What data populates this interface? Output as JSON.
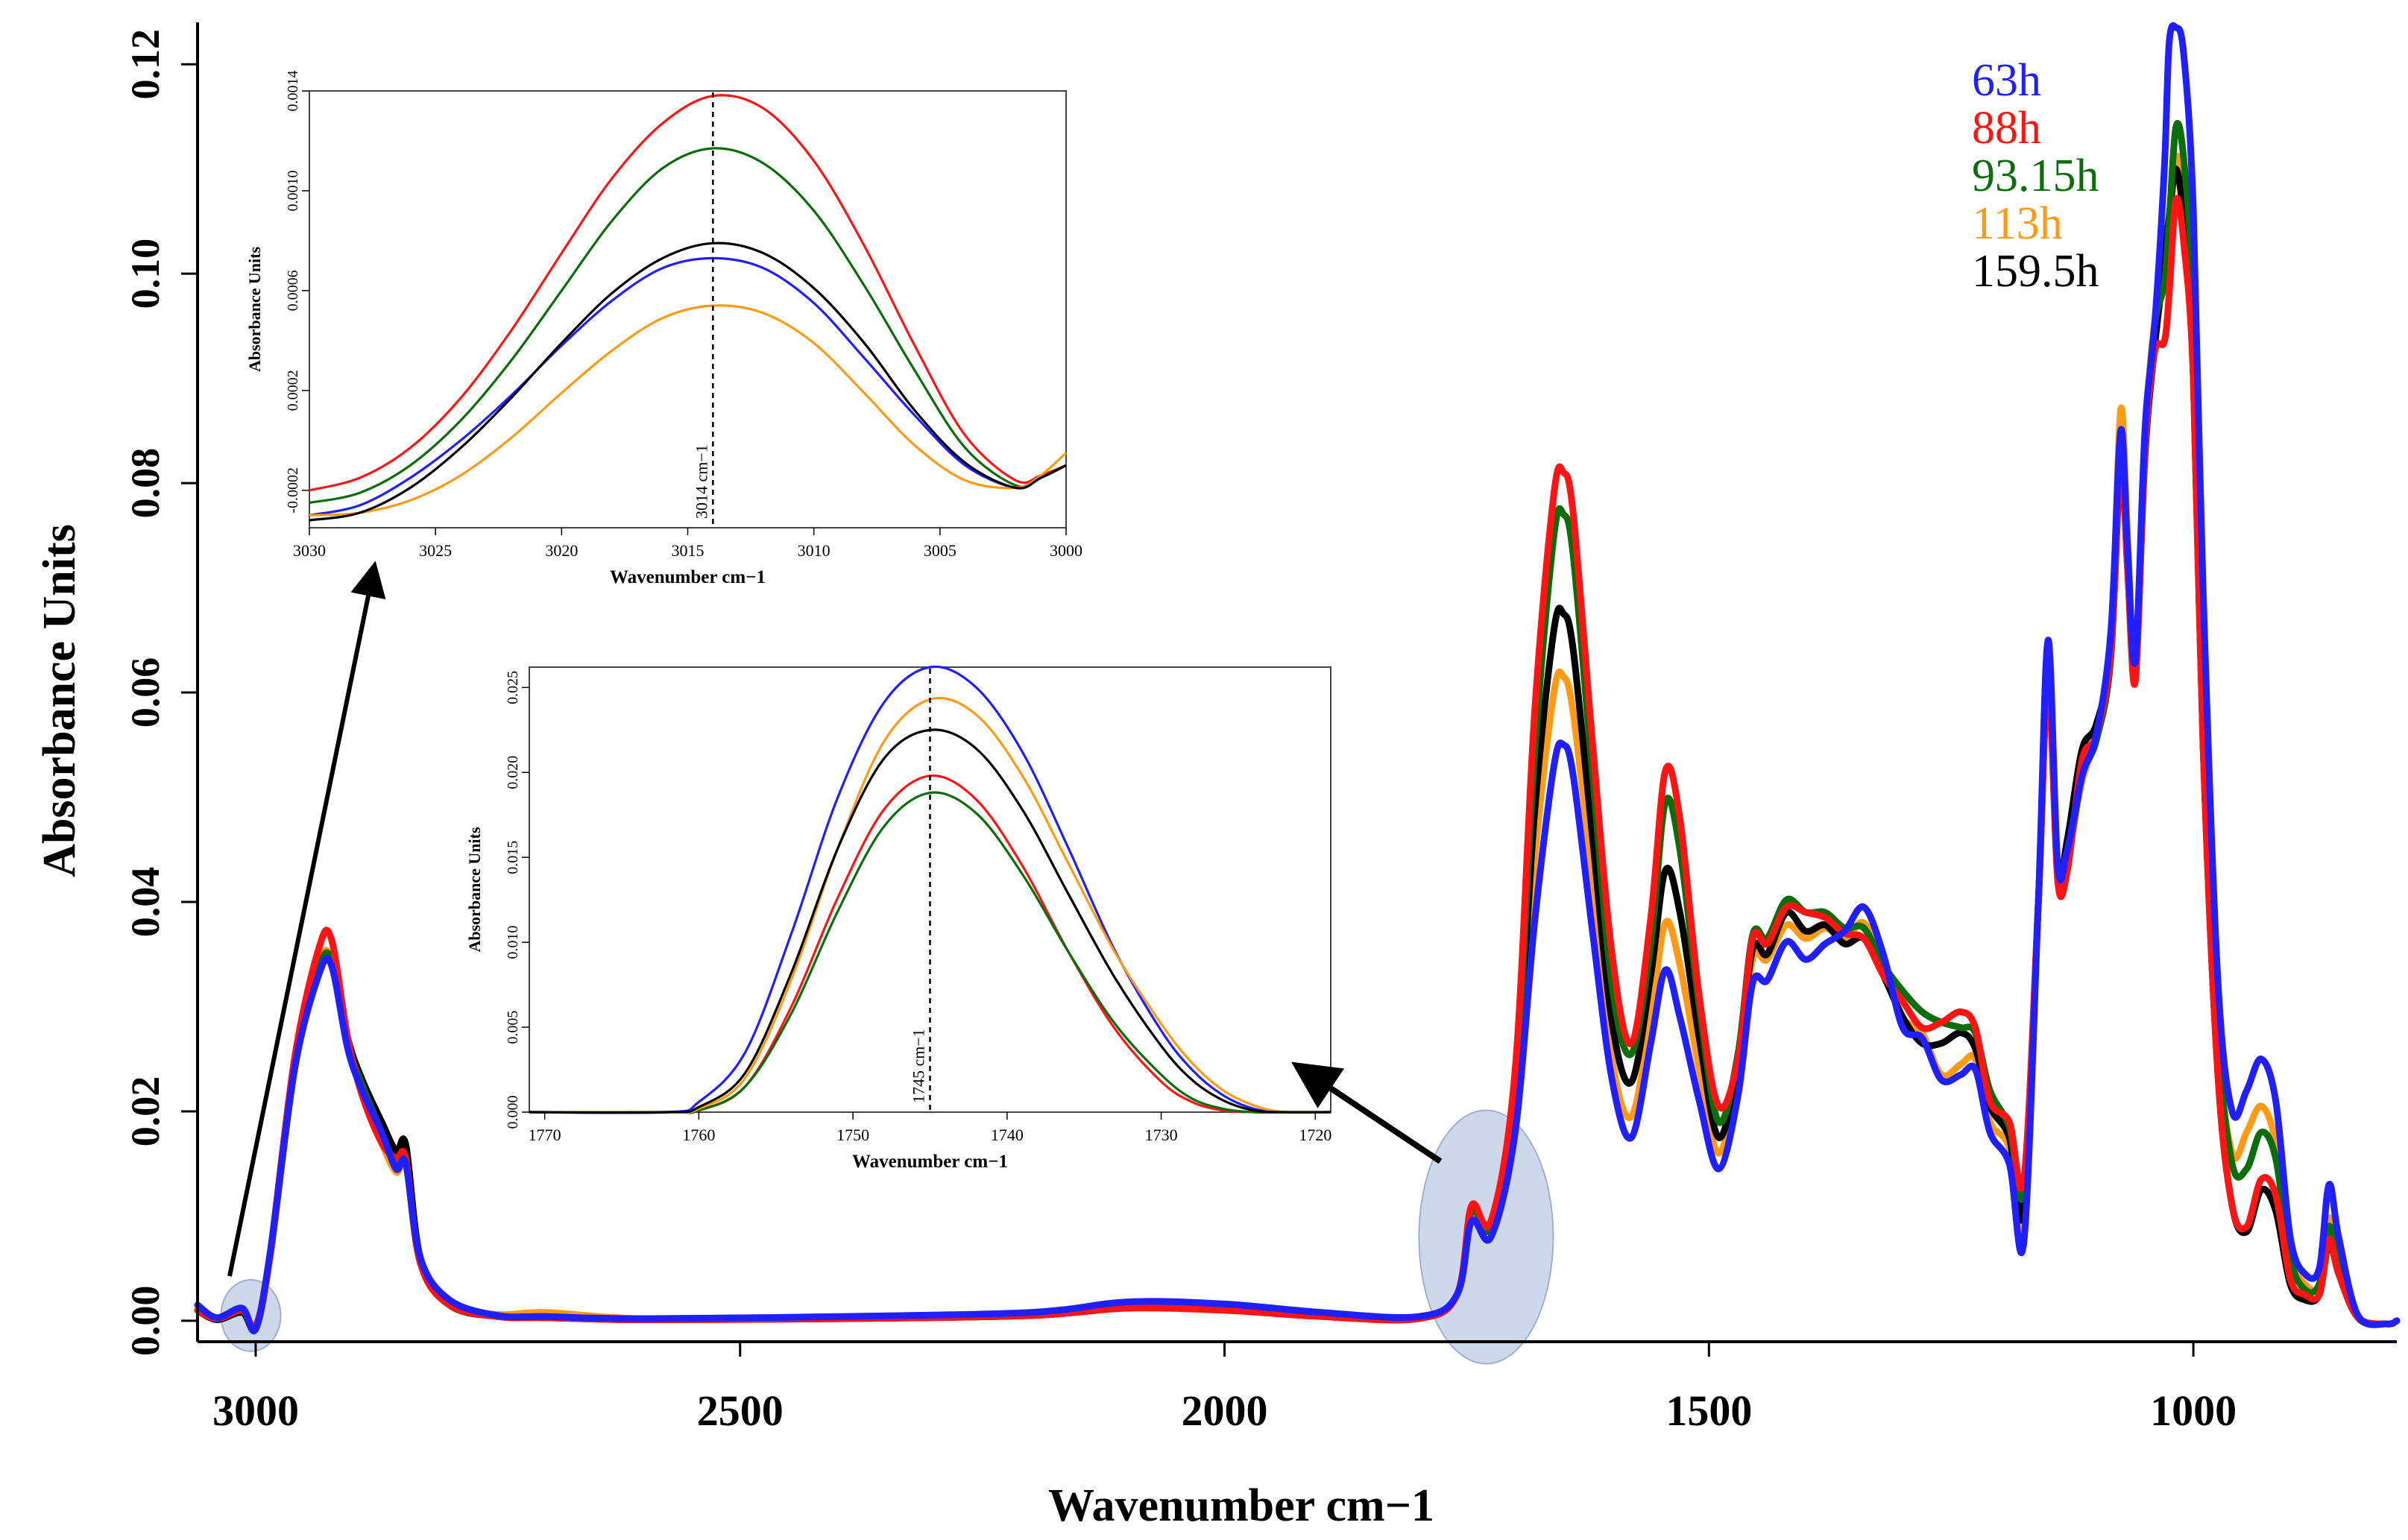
{
  "chart_data": [
    {
      "id": "main",
      "type": "line",
      "title": "",
      "xlabel": "Wavenumber cm−1",
      "ylabel": "Absorbance Units",
      "xlim": [
        3060,
        790
      ],
      "ylim": [
        -0.002,
        0.124
      ],
      "x_ticks": [
        3000,
        2500,
        2000,
        1500,
        1000
      ],
      "x_tick_labels": [
        "3000",
        "2500",
        "2000",
        "1500",
        "1000"
      ],
      "y_ticks": [
        0.0,
        0.02,
        0.04,
        0.06,
        0.08,
        0.1,
        0.12
      ],
      "y_tick_labels": [
        "0.00",
        "0.02",
        "0.04",
        "0.06",
        "0.08",
        "0.10",
        "0.12"
      ],
      "legend_position": "top-right",
      "x": [
        3060,
        3040,
        3014,
        3000,
        2985,
        2960,
        2935,
        2922,
        2905,
        2890,
        2870,
        2855,
        2845,
        2830,
        2800,
        2750,
        2700,
        2600,
        2400,
        2200,
        2100,
        2000,
        1900,
        1800,
        1760,
        1745,
        1725,
        1700,
        1680,
        1660,
        1650,
        1640,
        1620,
        1600,
        1580,
        1560,
        1545,
        1530,
        1510,
        1490,
        1470,
        1455,
        1440,
        1420,
        1400,
        1380,
        1360,
        1340,
        1320,
        1300,
        1280,
        1260,
        1240,
        1225,
        1210,
        1190,
        1175,
        1160,
        1150,
        1140,
        1130,
        1115,
        1100,
        1085,
        1075,
        1068,
        1060,
        1050,
        1040,
        1030,
        1025,
        1018,
        1010,
        1000,
        990,
        975,
        960,
        945,
        930,
        915,
        900,
        885,
        870,
        860,
        850,
        830,
        800,
        790
      ],
      "series": [
        {
          "name": "63h",
          "color": "#1f1fff",
          "values": [
            0.0015,
            0.0003,
            0.0012,
            -0.0008,
            0.0065,
            0.024,
            0.033,
            0.034,
            0.026,
            0.022,
            0.018,
            0.0145,
            0.015,
            0.006,
            0.002,
            0.0005,
            0.0004,
            0.0002,
            0.0004,
            0.0008,
            0.0018,
            0.0016,
            0.0008,
            0.0004,
            0.0025,
            0.0095,
            0.008,
            0.018,
            0.038,
            0.053,
            0.055,
            0.052,
            0.037,
            0.023,
            0.0175,
            0.0265,
            0.0335,
            0.029,
            0.021,
            0.0145,
            0.0215,
            0.0322,
            0.0325,
            0.0362,
            0.0345,
            0.036,
            0.0372,
            0.0395,
            0.035,
            0.028,
            0.027,
            0.023,
            0.0235,
            0.024,
            0.018,
            0.015,
            0.0075,
            0.04,
            0.065,
            0.0435,
            0.045,
            0.052,
            0.056,
            0.066,
            0.085,
            0.074,
            0.063,
            0.085,
            0.095,
            0.11,
            0.122,
            0.1235,
            0.121,
            0.106,
            0.07,
            0.033,
            0.02,
            0.022,
            0.025,
            0.021,
            0.008,
            0.0045,
            0.005,
            0.013,
            0.008,
            0.0005,
            -0.0003,
            0.0
          ]
        },
        {
          "name": "88h",
          "color": "#ff1414",
          "values": [
            0.001,
            0.0002,
            0.001,
            -0.0005,
            0.0065,
            0.025,
            0.0355,
            0.0365,
            0.027,
            0.0215,
            0.017,
            0.0155,
            0.0155,
            0.0055,
            0.0015,
            0.0004,
            0.0003,
            0.0001,
            0.0002,
            0.0005,
            0.0012,
            0.001,
            0.0004,
            0.0002,
            0.0025,
            0.011,
            0.0095,
            0.024,
            0.058,
            0.079,
            0.081,
            0.077,
            0.055,
            0.035,
            0.0265,
            0.0385,
            0.0525,
            0.048,
            0.031,
            0.0205,
            0.025,
            0.0365,
            0.036,
            0.0395,
            0.039,
            0.0385,
            0.037,
            0.0365,
            0.033,
            0.0305,
            0.028,
            0.0285,
            0.0295,
            0.028,
            0.021,
            0.019,
            0.0135,
            0.04,
            0.061,
            0.042,
            0.043,
            0.0535,
            0.056,
            0.064,
            0.0825,
            0.072,
            0.061,
            0.083,
            0.0925,
            0.0935,
            0.098,
            0.107,
            0.103,
            0.09,
            0.055,
            0.024,
            0.011,
            0.009,
            0.0135,
            0.012,
            0.004,
            0.0025,
            0.0025,
            0.0078,
            0.0045,
            0.0003,
            -0.0003,
            0.0
          ]
        },
        {
          "name": "93.15h",
          "color": "#0a6e0a",
          "values": [
            0.001,
            0.0002,
            0.001,
            -0.0006,
            0.0065,
            0.024,
            0.0335,
            0.0345,
            0.0265,
            0.0225,
            0.018,
            0.0148,
            0.0152,
            0.0055,
            0.0015,
            0.0004,
            0.0004,
            0.0001,
            0.0003,
            0.0006,
            0.0014,
            0.0012,
            0.0005,
            0.0003,
            0.0025,
            0.0105,
            0.009,
            0.022,
            0.054,
            0.075,
            0.077,
            0.073,
            0.052,
            0.032,
            0.0255,
            0.036,
            0.0495,
            0.045,
            0.03,
            0.019,
            0.0255,
            0.0368,
            0.0365,
            0.0402,
            0.039,
            0.039,
            0.0375,
            0.0375,
            0.034,
            0.0315,
            0.0295,
            0.0285,
            0.028,
            0.0275,
            0.022,
            0.0185,
            0.0125,
            0.04,
            0.062,
            0.0425,
            0.044,
            0.052,
            0.0555,
            0.0635,
            0.084,
            0.074,
            0.062,
            0.0835,
            0.095,
            0.099,
            0.105,
            0.114,
            0.111,
            0.097,
            0.062,
            0.028,
            0.015,
            0.0145,
            0.018,
            0.0155,
            0.006,
            0.003,
            0.0035,
            0.009,
            0.0055,
            0.0003,
            -0.0003,
            0.0
          ]
        },
        {
          "name": "113h",
          "color": "#ff9a14",
          "values": [
            0.001,
            0.0001,
            0.0008,
            -0.0007,
            0.006,
            0.024,
            0.034,
            0.0345,
            0.0265,
            0.022,
            0.017,
            0.0142,
            0.0148,
            0.0055,
            0.0015,
            0.0006,
            0.0008,
            0.0002,
            0.0003,
            0.0006,
            0.0015,
            0.0013,
            0.0006,
            0.0003,
            0.0025,
            0.0105,
            0.009,
            0.02,
            0.044,
            0.06,
            0.0615,
            0.058,
            0.042,
            0.025,
            0.0195,
            0.029,
            0.038,
            0.034,
            0.024,
            0.016,
            0.0235,
            0.0345,
            0.0345,
            0.0378,
            0.0365,
            0.0375,
            0.0365,
            0.038,
            0.034,
            0.029,
            0.0275,
            0.0235,
            0.0245,
            0.025,
            0.019,
            0.0165,
            0.0085,
            0.04,
            0.0635,
            0.043,
            0.044,
            0.0515,
            0.056,
            0.065,
            0.087,
            0.075,
            0.062,
            0.084,
            0.0955,
            0.1,
            0.1035,
            0.111,
            0.108,
            0.095,
            0.062,
            0.028,
            0.016,
            0.018,
            0.0205,
            0.017,
            0.0065,
            0.0035,
            0.0035,
            0.0098,
            0.006,
            0.0003,
            -0.0003,
            0.0
          ]
        },
        {
          "name": "159.5h",
          "color": "#000000",
          "values": [
            0.001,
            0.0001,
            0.0008,
            -0.0007,
            0.0065,
            0.024,
            0.0335,
            0.0345,
            0.027,
            0.023,
            0.019,
            0.0162,
            0.0168,
            0.006,
            0.0015,
            0.0004,
            0.0003,
            0.0001,
            0.0002,
            0.0005,
            0.0013,
            0.0011,
            0.0005,
            0.0003,
            0.0025,
            0.0105,
            0.0095,
            0.021,
            0.0485,
            0.066,
            0.0675,
            0.064,
            0.046,
            0.0285,
            0.0228,
            0.033,
            0.043,
            0.039,
            0.027,
            0.0175,
            0.0245,
            0.0355,
            0.035,
            0.039,
            0.0372,
            0.0378,
            0.036,
            0.0365,
            0.033,
            0.029,
            0.0265,
            0.0265,
            0.0275,
            0.026,
            0.0205,
            0.0175,
            0.0105,
            0.04,
            0.0615,
            0.043,
            0.046,
            0.0545,
            0.057,
            0.064,
            0.082,
            0.072,
            0.062,
            0.0825,
            0.093,
            0.101,
            0.1055,
            0.11,
            0.105,
            0.09,
            0.055,
            0.024,
            0.011,
            0.0085,
            0.0125,
            0.0105,
            0.0035,
            0.002,
            0.0025,
            0.0075,
            0.0045,
            0.0003,
            -0.0003,
            0.0
          ]
        }
      ]
    },
    {
      "id": "inset1",
      "type": "line",
      "xlabel": "Wavenumber cm−1",
      "ylabel": "Absorbance Units",
      "xlim": [
        3030,
        3000
      ],
      "ylim": [
        -0.00035,
        0.0014
      ],
      "x_ticks": [
        3030,
        3025,
        3020,
        3015,
        3010,
        3005,
        3000
      ],
      "x_tick_labels": [
        "3030",
        "3025",
        "3020",
        "3015",
        "3010",
        "3005",
        "3000"
      ],
      "y_ticks": [
        -0.0002,
        0.0002,
        0.0006,
        0.001,
        0.0014
      ],
      "y_tick_labels": [
        "-0.0002",
        "0.0002",
        "0.0006",
        "0.0010",
        "0.0014"
      ],
      "annotation": "3014 cm−1",
      "annotation_x": 3014,
      "x": [
        3030,
        3028,
        3026,
        3024,
        3022,
        3020,
        3018,
        3016,
        3014,
        3012,
        3010,
        3008,
        3006,
        3004,
        3002,
        3001,
        3000
      ],
      "series": [
        {
          "name": "63h",
          "color": "#1f1fff",
          "values": [
            -0.0003,
            -0.00026,
            -0.00015,
            0.0,
            0.00018,
            0.00038,
            0.00056,
            0.00069,
            0.00073,
            0.00069,
            0.00055,
            0.00033,
            0.0001,
            -0.0001,
            -0.00019,
            -0.00015,
            -0.0001
          ]
        },
        {
          "name": "88h",
          "color": "#ff1414",
          "values": [
            -0.0002,
            -0.00015,
            -3e-05,
            0.00017,
            0.00044,
            0.00075,
            0.00105,
            0.00127,
            0.00138,
            0.00133,
            0.00112,
            0.00078,
            0.00038,
            2e-05,
            -0.00016,
            -0.00014,
            -0.0001
          ]
        },
        {
          "name": "93.15h",
          "color": "#0a6e0a",
          "values": [
            -0.00025,
            -0.00021,
            -0.0001,
            8e-05,
            0.00032,
            0.0006,
            0.00088,
            0.00109,
            0.00117,
            0.00111,
            0.00092,
            0.00062,
            0.00028,
            -3e-05,
            -0.00018,
            -0.00015,
            -0.0001
          ]
        },
        {
          "name": "113h",
          "color": "#ff9a14",
          "values": [
            -0.0003,
            -0.00029,
            -0.00024,
            -0.00014,
            1e-05,
            0.00019,
            0.00036,
            0.00049,
            0.00054,
            0.00051,
            0.00039,
            0.00019,
            -2e-05,
            -0.00016,
            -0.00019,
            -0.00014,
            -5e-05
          ]
        },
        {
          "name": "159.5h",
          "color": "#000000",
          "values": [
            -0.00032,
            -0.00029,
            -0.00019,
            -3e-05,
            0.00017,
            0.00039,
            0.00059,
            0.00073,
            0.00079,
            0.00075,
            0.00061,
            0.00039,
            0.00012,
            -9e-05,
            -0.00019,
            -0.00015,
            -0.0001
          ]
        }
      ]
    },
    {
      "id": "inset2",
      "type": "line",
      "xlabel": "Wavenumber cm−1",
      "ylabel": "Absorbance Units",
      "xlim": [
        1771,
        1719
      ],
      "ylim": [
        0.0,
        0.0262
      ],
      "x_ticks": [
        1770,
        1760,
        1750,
        1740,
        1730,
        1720
      ],
      "x_tick_labels": [
        "1770",
        "1760",
        "1750",
        "1740",
        "1730",
        "1720"
      ],
      "y_ticks": [
        0.0,
        0.005,
        0.01,
        0.015,
        0.02,
        0.025
      ],
      "y_tick_labels": [
        "0.000",
        "0.005",
        "0.010",
        "0.015",
        "0.020",
        "0.025"
      ],
      "annotation": "1745 cm−1",
      "annotation_x": 1745,
      "x": [
        1771,
        1762,
        1760,
        1757,
        1754,
        1751,
        1748,
        1745,
        1742,
        1739,
        1736,
        1733,
        1730,
        1728,
        1726,
        1724,
        1722,
        1719
      ],
      "series": [
        {
          "name": "63h",
          "color": "#1f1fff",
          "values": [
            0.0,
            0.0,
            0.0006,
            0.0035,
            0.0105,
            0.0185,
            0.0241,
            0.0262,
            0.025,
            0.0212,
            0.0155,
            0.0095,
            0.0048,
            0.0025,
            0.001,
            0.0002,
            0.0,
            0.0
          ]
        },
        {
          "name": "88h",
          "color": "#ff1414",
          "values": [
            0.0,
            0.0,
            0.0001,
            0.0015,
            0.0062,
            0.0126,
            0.0178,
            0.0198,
            0.0184,
            0.0145,
            0.0094,
            0.0049,
            0.0018,
            0.0006,
            0.0001,
            0.0,
            0.0,
            0.0
          ]
        },
        {
          "name": "93.15h",
          "color": "#0a6e0a",
          "values": [
            0.0,
            0.0,
            0.0001,
            0.0015,
            0.0058,
            0.0118,
            0.0168,
            0.0188,
            0.0176,
            0.014,
            0.0094,
            0.0052,
            0.0022,
            0.0008,
            0.0002,
            0.0,
            0.0,
            0.0
          ]
        },
        {
          "name": "113h",
          "color": "#ff9a14",
          "values": [
            0.0,
            0.0,
            0.0002,
            0.002,
            0.0078,
            0.0155,
            0.0218,
            0.0243,
            0.0234,
            0.0198,
            0.0146,
            0.0094,
            0.0052,
            0.0029,
            0.0013,
            0.0004,
            0.0,
            0.0
          ]
        },
        {
          "name": "159.5h",
          "color": "#000000",
          "values": [
            0.0,
            0.0,
            0.0003,
            0.0023,
            0.0082,
            0.0155,
            0.0208,
            0.0225,
            0.0214,
            0.0178,
            0.0128,
            0.0079,
            0.0039,
            0.0019,
            0.0007,
            0.0001,
            0.0,
            0.0
          ]
        }
      ]
    }
  ]
}
